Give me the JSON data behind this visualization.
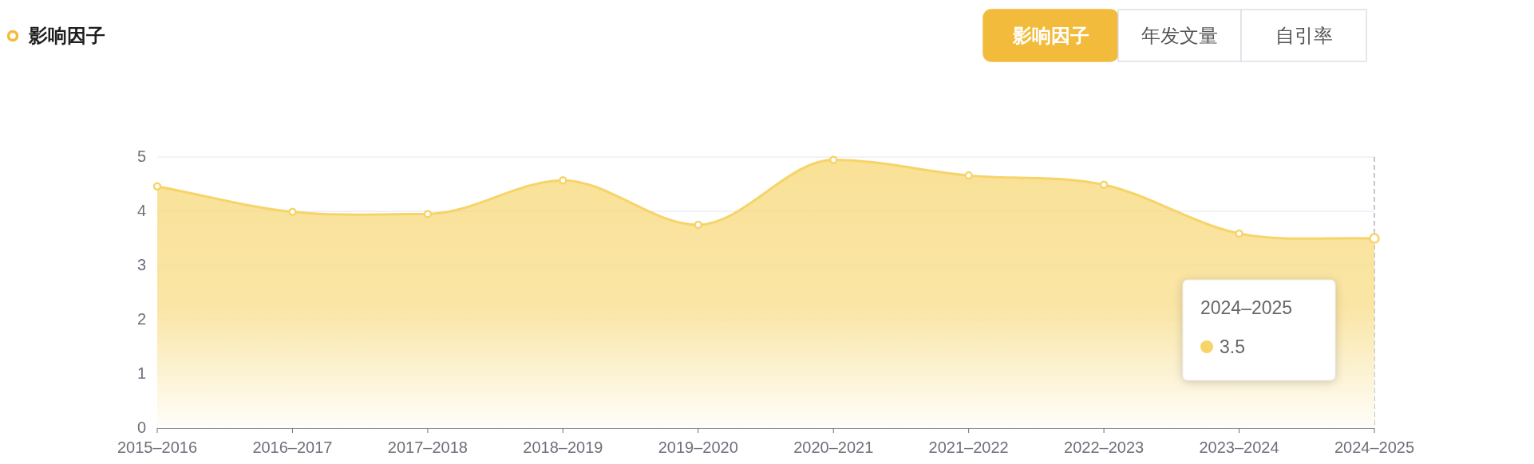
{
  "chart_data": {
    "type": "area",
    "categories": [
      "2015–2016",
      "2016–2017",
      "2017–2018",
      "2018–2019",
      "2019–2020",
      "2020–2021",
      "2021–2022",
      "2022–2023",
      "2023–2024",
      "2024–2025"
    ],
    "series": [
      {
        "name": "影响因子",
        "color": "#f7d469",
        "values": [
          4.46,
          3.99,
          3.95,
          4.57,
          3.75,
          4.95,
          4.66,
          4.49,
          3.59,
          3.5
        ]
      }
    ],
    "ylim": [
      0,
      5
    ],
    "yticks": [
      0,
      1,
      2,
      3,
      4,
      5
    ],
    "grid": "y",
    "legend": "top left",
    "marker": "circle",
    "ref_lines": [
      {
        "axis": "x",
        "value": "2024–2025",
        "color": "#b0b4bc",
        "line_style": "dashed"
      }
    ],
    "annotations": [
      "2024–2025\n3.5",
      "影响因子",
      "年发文量",
      "自引率"
    ]
  }
}
